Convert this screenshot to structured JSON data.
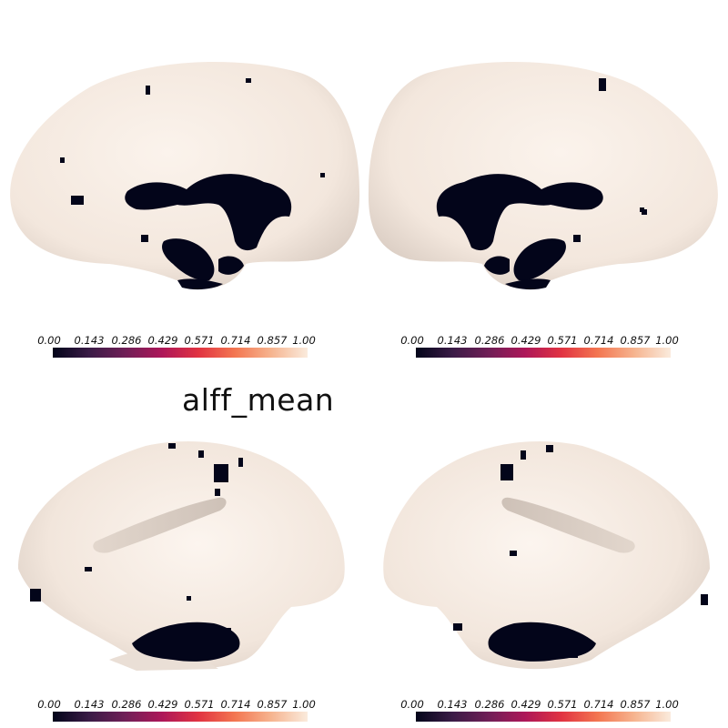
{
  "figure": {
    "title": "alff_mean",
    "colormap": {
      "name": "rocket",
      "colors": [
        "#03051a",
        "#3a1b46",
        "#701f57",
        "#ad1759",
        "#e13342",
        "#f37651",
        "#f6b48f",
        "#faebdd"
      ],
      "ticks": [
        "0.00",
        "0.143",
        "0.286",
        "0.429",
        "0.571",
        "0.714",
        "0.857",
        "1.00"
      ]
    },
    "surface_color": "#f7ece3",
    "mask_color": "#03051a",
    "views": [
      {
        "hemisphere": "left",
        "view": "medial"
      },
      {
        "hemisphere": "right",
        "view": "medial"
      },
      {
        "hemisphere": "left",
        "view": "lateral"
      },
      {
        "hemisphere": "right",
        "view": "lateral"
      }
    ]
  }
}
